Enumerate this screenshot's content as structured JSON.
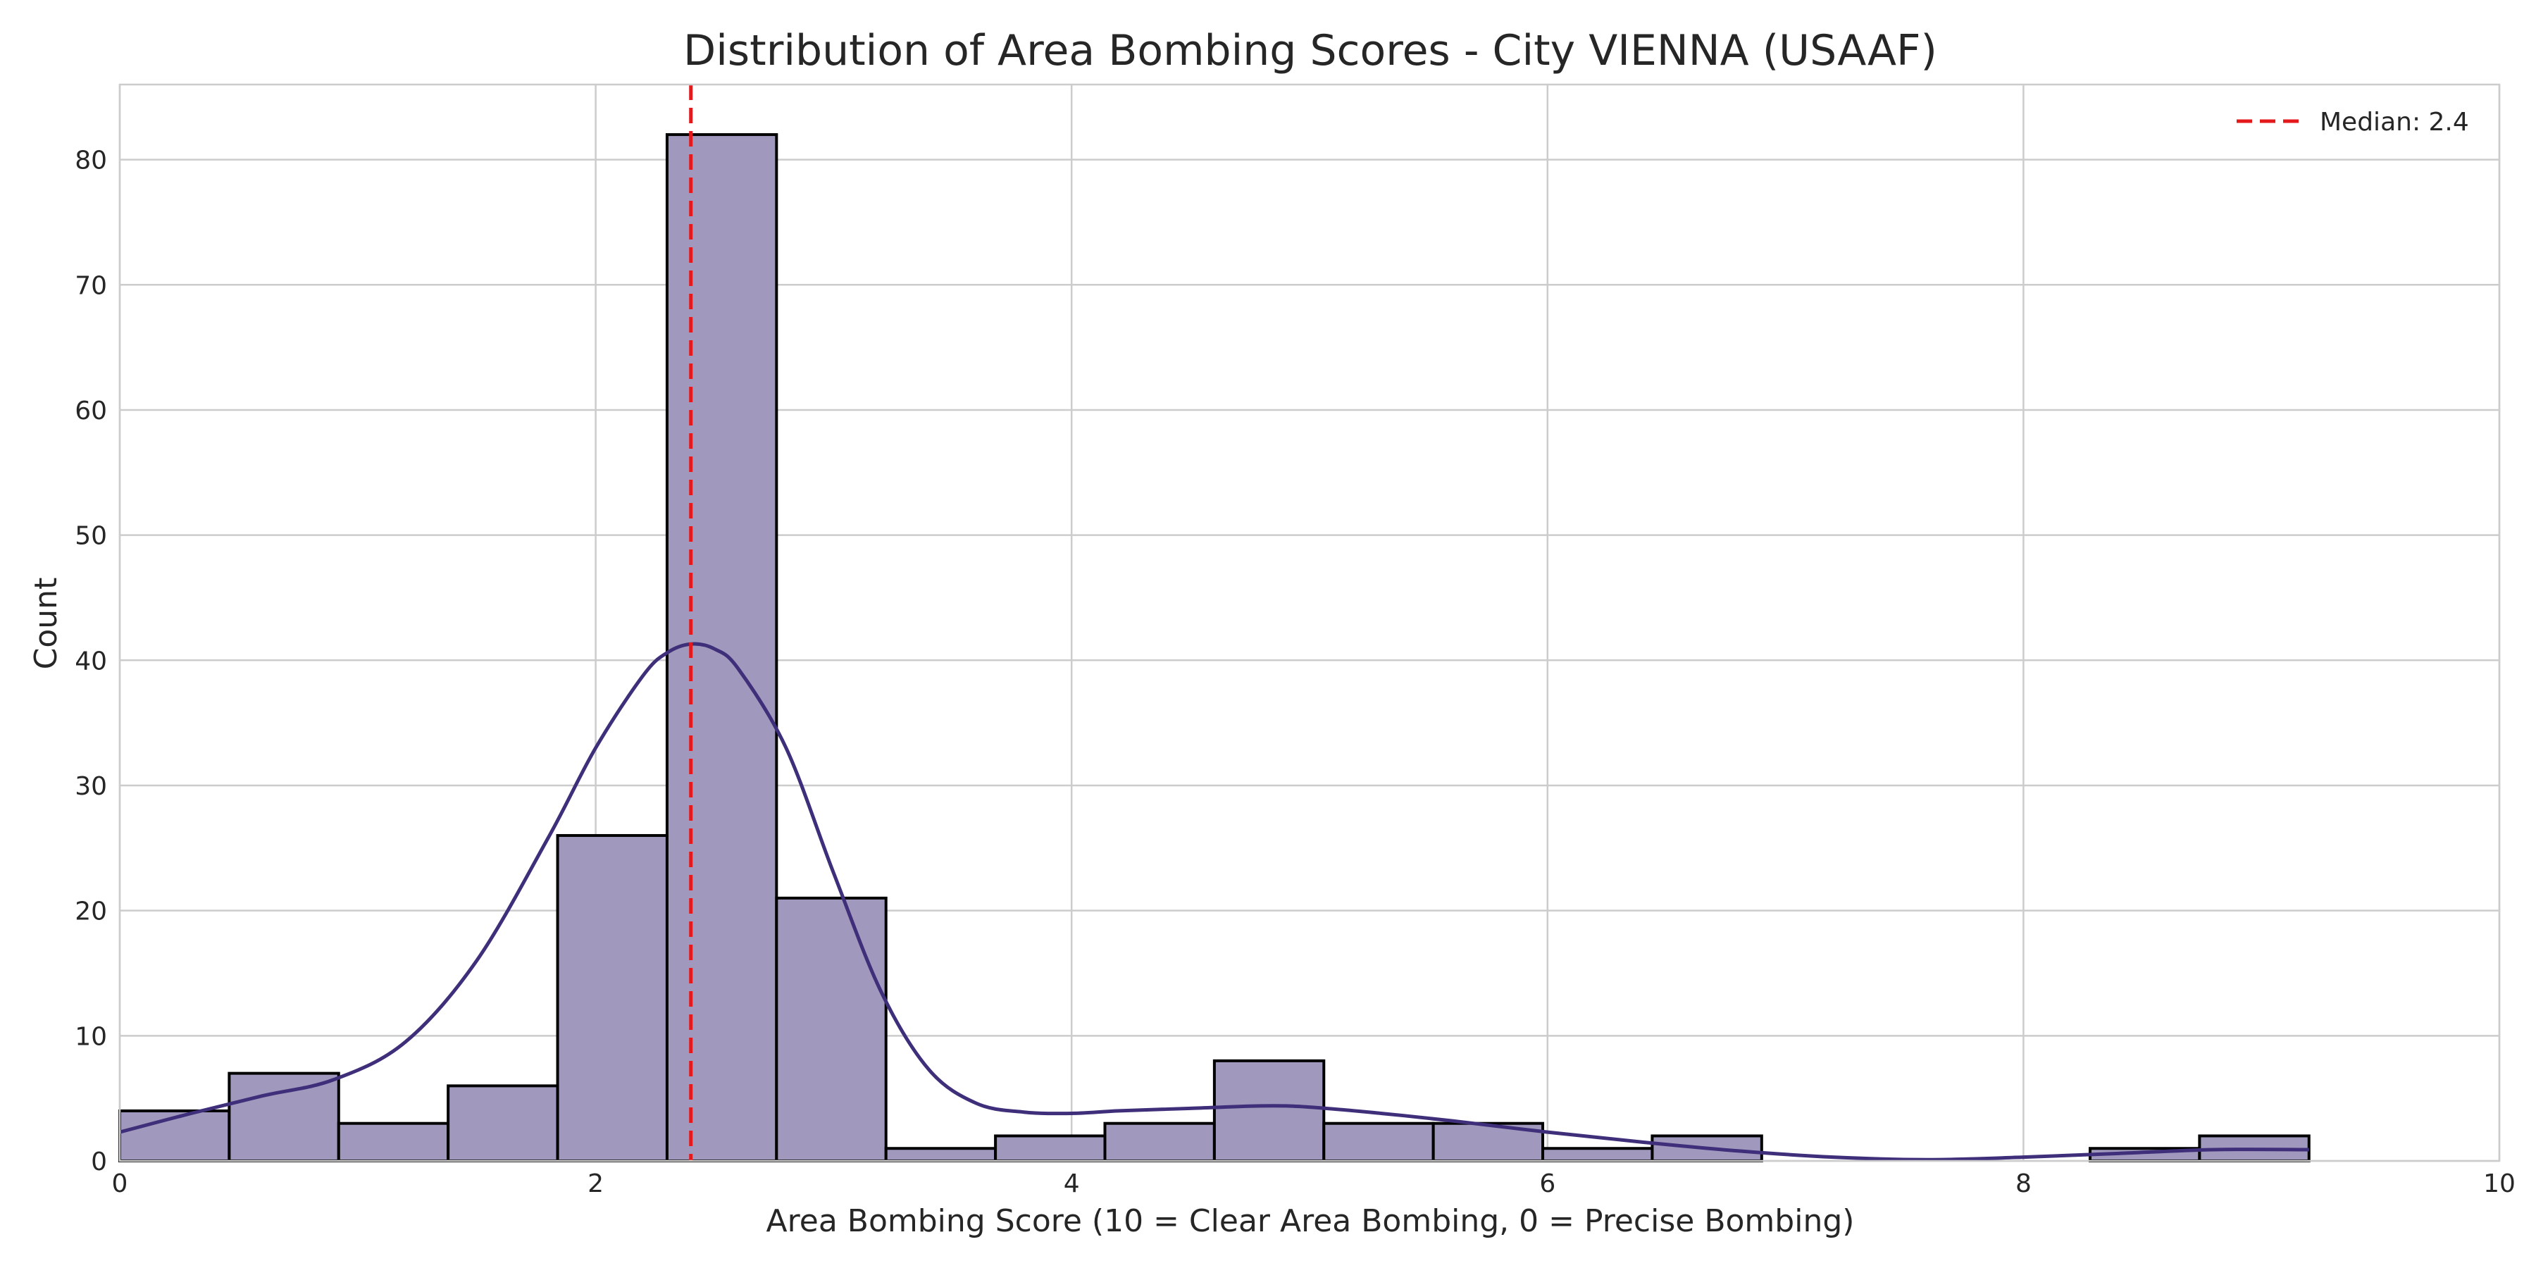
{
  "chart_data": {
    "type": "bar",
    "title": "Distribution of Area Bombing Scores - City VIENNA (USAAF)",
    "xlabel": "Area Bombing Score (10 = Clear Area Bombing, 0 = Precise Bombing)",
    "ylabel": "Count",
    "xlim": [
      0,
      10
    ],
    "ylim": [
      0,
      86
    ],
    "xticks": [
      0,
      2,
      4,
      6,
      8,
      10
    ],
    "yticks": [
      0,
      10,
      20,
      30,
      40,
      50,
      60,
      70,
      80
    ],
    "grid": true,
    "legend_position": "top-right",
    "bins": [
      {
        "x0": 0.0,
        "x1": 0.46,
        "count": 4
      },
      {
        "x0": 0.46,
        "x1": 0.92,
        "count": 7
      },
      {
        "x0": 0.92,
        "x1": 1.38,
        "count": 3
      },
      {
        "x0": 1.38,
        "x1": 1.84,
        "count": 6
      },
      {
        "x0": 1.84,
        "x1": 2.3,
        "count": 26
      },
      {
        "x0": 2.3,
        "x1": 2.76,
        "count": 82
      },
      {
        "x0": 2.76,
        "x1": 3.22,
        "count": 21
      },
      {
        "x0": 3.22,
        "x1": 3.68,
        "count": 1
      },
      {
        "x0": 3.68,
        "x1": 4.14,
        "count": 2
      },
      {
        "x0": 4.14,
        "x1": 4.6,
        "count": 3
      },
      {
        "x0": 4.6,
        "x1": 5.06,
        "count": 8
      },
      {
        "x0": 5.06,
        "x1": 5.52,
        "count": 3
      },
      {
        "x0": 5.52,
        "x1": 5.98,
        "count": 3
      },
      {
        "x0": 5.98,
        "x1": 6.44,
        "count": 1
      },
      {
        "x0": 6.44,
        "x1": 6.9,
        "count": 2
      },
      {
        "x0": 6.9,
        "x1": 7.36,
        "count": 0
      },
      {
        "x0": 7.36,
        "x1": 7.82,
        "count": 0
      },
      {
        "x0": 7.82,
        "x1": 8.28,
        "count": 0
      },
      {
        "x0": 8.28,
        "x1": 8.74,
        "count": 1
      },
      {
        "x0": 8.74,
        "x1": 9.2,
        "count": 2
      }
    ],
    "kde": {
      "x": [
        0.0,
        0.3,
        0.6,
        0.9,
        1.2,
        1.5,
        1.8,
        2.0,
        2.2,
        2.3,
        2.4,
        2.5,
        2.6,
        2.8,
        3.0,
        3.2,
        3.4,
        3.6,
        3.8,
        4.0,
        4.2,
        4.5,
        4.8,
        5.0,
        5.3,
        5.6,
        6.0,
        6.4,
        6.8,
        7.2,
        7.6,
        8.0,
        8.4,
        8.8,
        9.2
      ],
      "y": [
        2.3,
        3.8,
        5.2,
        6.5,
        9.5,
        16.0,
        25.8,
        33.0,
        38.8,
        40.6,
        41.3,
        40.9,
        39.3,
        33.0,
        23.0,
        13.5,
        7.3,
        4.6,
        3.9,
        3.8,
        4.0,
        4.2,
        4.4,
        4.3,
        3.8,
        3.2,
        2.3,
        1.5,
        0.8,
        0.3,
        0.1,
        0.3,
        0.6,
        0.9,
        0.9
      ]
    },
    "median": {
      "value": 2.4,
      "label": "Median: 2.4"
    },
    "colors": {
      "bar_fill": "#a099bd",
      "bar_edge": "#000000",
      "kde_line": "#3f2f7a",
      "median_line": "#e4191c",
      "grid": "#cccccc"
    }
  }
}
